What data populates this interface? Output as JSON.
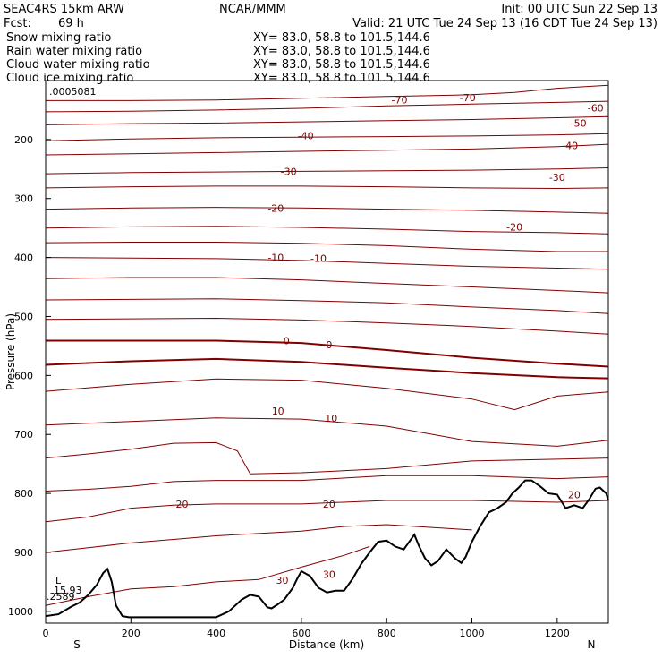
{
  "header": {
    "model": "SEAC4RS 15km ARW",
    "org": "NCAR/MMM",
    "init": "Init: 00 UTC Sun 22 Sep 13",
    "fcst_label": "Fcst:",
    "fcst_value": "69 h",
    "valid": "Valid: 21 UTC Tue 24 Sep 13 (16 CDT Tue 24 Sep 13)",
    "fields": [
      {
        "name": "Snow mixing ratio",
        "xy": "XY=  83.0, 58.8 to 101.5,144.6",
        "color": "#000000"
      },
      {
        "name": "Rain water mixing ratio",
        "xy": "XY=  83.0, 58.8 to 101.5,144.6",
        "color": "#ff0000"
      },
      {
        "name": "Cloud water mixing ratio",
        "xy": "XY=  83.0, 58.8 to 101.5,144.6",
        "color": "#0000cc"
      },
      {
        "name": "Cloud ice mixing ratio",
        "xy": "XY=  83.0, 58.8 to 101.5,144.6",
        "color": "#000000"
      }
    ],
    "max_value": ".0005081"
  },
  "annotations": {
    "low_marker": "L",
    "low_value": "15.93",
    "blue_value": ".2589",
    "blue_color": "#0000cc",
    "south": "S",
    "north": "N"
  },
  "colors": {
    "contour": "#800000",
    "terrain": "#000000"
  },
  "chart_data": {
    "type": "line",
    "title": "",
    "xlabel": "Distance (km)",
    "ylabel": "Pressure (hPa)",
    "xlim": [
      0,
      1320
    ],
    "ylim": [
      1020,
      100
    ],
    "x_ticks": [
      0,
      200,
      400,
      600,
      800,
      1000,
      1200
    ],
    "y_ticks": [
      200,
      300,
      400,
      500,
      600,
      700,
      800,
      900,
      1000
    ],
    "terrain": {
      "name": "Terrain",
      "x": [
        0,
        30,
        60,
        80,
        100,
        120,
        135,
        145,
        155,
        165,
        180,
        195,
        210,
        250,
        300,
        350,
        400,
        430,
        460,
        480,
        500,
        520,
        530,
        545,
        560,
        580,
        590,
        600,
        620,
        640,
        660,
        680,
        700,
        720,
        740,
        760,
        780,
        800,
        820,
        840,
        855,
        865,
        875,
        890,
        905,
        920,
        940,
        960,
        975,
        985,
        1000,
        1020,
        1040,
        1060,
        1080,
        1095,
        1110,
        1125,
        1140,
        1160,
        1180,
        1200,
        1220,
        1240,
        1260,
        1275,
        1290,
        1300,
        1315,
        1320
      ],
      "pressure": [
        1008,
        1005,
        992,
        985,
        972,
        955,
        935,
        928,
        950,
        990,
        1008,
        1010,
        1010,
        1010,
        1010,
        1010,
        1010,
        1000,
        980,
        972,
        975,
        993,
        995,
        988,
        980,
        960,
        945,
        932,
        940,
        960,
        968,
        965,
        965,
        945,
        920,
        900,
        882,
        880,
        890,
        895,
        880,
        870,
        888,
        910,
        922,
        915,
        895,
        910,
        918,
        908,
        882,
        855,
        832,
        825,
        815,
        800,
        790,
        778,
        778,
        788,
        800,
        802,
        825,
        820,
        825,
        810,
        792,
        790,
        800,
        812
      ]
    },
    "temperature_contours": [
      {
        "name": "-70",
        "x": [
          0,
          200,
          400,
          600,
          800,
          1000,
          1100,
          1200,
          1320
        ],
        "pressure": [
          134,
          134,
          133,
          130,
          127,
          124,
          120,
          113,
          108
        ]
      },
      {
        "name": "-60",
        "x": [
          0,
          200,
          400,
          600,
          800,
          1000,
          1200,
          1320
        ],
        "pressure": [
          153,
          152,
          150,
          147,
          143,
          140,
          137,
          135
        ]
      },
      {
        "name": "-50",
        "x": [
          0,
          200,
          400,
          600,
          800,
          1000,
          1200,
          1320
        ],
        "pressure": [
          175,
          173,
          172,
          170,
          168,
          166,
          163,
          161
        ]
      },
      {
        "name": "-40",
        "x": [
          0,
          200,
          400,
          600,
          800,
          1000,
          1200,
          1320
        ],
        "pressure": [
          202,
          199,
          197,
          196,
          195,
          194,
          192,
          190
        ]
      },
      {
        "name": "-40",
        "x": [
          0,
          200,
          400,
          600,
          800,
          1000,
          1200,
          1320
        ],
        "pressure": [
          226,
          224,
          222,
          220,
          218,
          216,
          212,
          208
        ]
      },
      {
        "name": "-30",
        "x": [
          0,
          200,
          400,
          600,
          800,
          1000,
          1200,
          1320
        ],
        "pressure": [
          258,
          256,
          255,
          254,
          253,
          252,
          250,
          248
        ]
      },
      {
        "name": "-30",
        "x": [
          0,
          200,
          400,
          600,
          800,
          1000,
          1200,
          1320
        ],
        "pressure": [
          282,
          280,
          279,
          279,
          280,
          282,
          283,
          282
        ]
      },
      {
        "name": "-20",
        "x": [
          0,
          200,
          400,
          600,
          800,
          1000,
          1200,
          1320
        ],
        "pressure": [
          318,
          316,
          315,
          316,
          318,
          320,
          323,
          325
        ]
      },
      {
        "name": "-20",
        "x": [
          0,
          200,
          400,
          600,
          800,
          1000,
          1200,
          1320
        ],
        "pressure": [
          350,
          348,
          347,
          349,
          352,
          356,
          358,
          360
        ]
      },
      {
        "name": "-20",
        "x": [
          0,
          200,
          400,
          600,
          800,
          1000,
          1200,
          1320
        ],
        "pressure": [
          375,
          374,
          374,
          376,
          380,
          386,
          390,
          390
        ]
      },
      {
        "name": "-10",
        "x": [
          0,
          200,
          400,
          600,
          800,
          1000,
          1200,
          1320
        ],
        "pressure": [
          400,
          401,
          402,
          405,
          410,
          415,
          418,
          420
        ]
      },
      {
        "name": "-10",
        "x": [
          0,
          200,
          400,
          600,
          800,
          1000,
          1200,
          1320
        ],
        "pressure": [
          436,
          434,
          434,
          438,
          444,
          450,
          456,
          460
        ]
      },
      {
        "name": "-10",
        "x": [
          0,
          200,
          400,
          600,
          800,
          1000,
          1200,
          1320
        ],
        "pressure": [
          472,
          471,
          470,
          473,
          477,
          484,
          490,
          495
        ]
      },
      {
        "name": "-10",
        "x": [
          0,
          200,
          400,
          600,
          800,
          1000,
          1200,
          1320
        ],
        "pressure": [
          505,
          504,
          503,
          506,
          511,
          517,
          525,
          530
        ]
      },
      {
        "name": "0",
        "x": [
          0,
          200,
          400,
          600,
          800,
          1000,
          1200,
          1320
        ],
        "pressure": [
          541,
          541,
          541,
          545,
          557,
          570,
          580,
          585
        ]
      },
      {
        "name": "0",
        "x": [
          0,
          200,
          400,
          600,
          800,
          1000,
          1200,
          1320
        ],
        "pressure": [
          582,
          576,
          572,
          577,
          587,
          596,
          603,
          605
        ]
      },
      {
        "name": "10",
        "x": [
          0,
          200,
          400,
          600,
          800,
          1000,
          1100,
          1200,
          1320
        ],
        "pressure": [
          627,
          615,
          606,
          608,
          622,
          640,
          658,
          635,
          628
        ]
      },
      {
        "name": "10",
        "x": [
          0,
          200,
          400,
          600,
          800,
          1000,
          1200,
          1320
        ],
        "pressure": [
          684,
          678,
          672,
          674,
          686,
          712,
          720,
          710
        ]
      },
      {
        "name": "10",
        "x": [
          0,
          100,
          200,
          300,
          400,
          450,
          480,
          600,
          800,
          1000,
          1200,
          1320
        ],
        "pressure": [
          740,
          733,
          725,
          715,
          714,
          728,
          767,
          765,
          758,
          745,
          742,
          740
        ]
      },
      {
        "name": "20",
        "x": [
          0,
          100,
          200,
          300,
          400,
          600,
          800,
          1000,
          1200,
          1320
        ],
        "pressure": [
          796,
          793,
          788,
          780,
          778,
          778,
          770,
          770,
          775,
          772
        ]
      },
      {
        "name": "20",
        "x": [
          0,
          100,
          200,
          300,
          400,
          600,
          800,
          1000,
          1200,
          1320
        ],
        "pressure": [
          848,
          840,
          825,
          820,
          818,
          818,
          812,
          812,
          815,
          812
        ]
      },
      {
        "name": "20",
        "x": [
          0,
          100,
          200,
          300,
          400,
          600,
          700,
          800,
          1000
        ],
        "pressure": [
          900,
          892,
          884,
          878,
          872,
          864,
          856,
          853,
          862
        ]
      },
      {
        "name": "30",
        "x": [
          0,
          100,
          200,
          300,
          400,
          500,
          600,
          700,
          760
        ],
        "pressure": [
          990,
          975,
          962,
          958,
          950,
          946,
          925,
          905,
          890
        ]
      }
    ],
    "contour_labels": [
      {
        "text": "-70",
        "x": 830,
        "p": 133
      },
      {
        "text": "-70",
        "x": 990,
        "p": 129
      },
      {
        "text": "-60",
        "x": 1290,
        "p": 146
      },
      {
        "text": "-50",
        "x": 1250,
        "p": 172
      },
      {
        "text": "-40",
        "x": 610,
        "p": 193
      },
      {
        "text": "-40",
        "x": 1230,
        "p": 210
      },
      {
        "text": "-30",
        "x": 570,
        "p": 254
      },
      {
        "text": "-30",
        "x": 1200,
        "p": 264
      },
      {
        "text": "-20",
        "x": 540,
        "p": 316
      },
      {
        "text": "-20",
        "x": 1100,
        "p": 348
      },
      {
        "text": "-10",
        "x": 540,
        "p": 400
      },
      {
        "text": "-10",
        "x": 640,
        "p": 401
      },
      {
        "text": "0",
        "x": 565,
        "p": 541
      },
      {
        "text": "0",
        "x": 665,
        "p": 548
      },
      {
        "text": "10",
        "x": 545,
        "p": 660
      },
      {
        "text": "10",
        "x": 670,
        "p": 672
      },
      {
        "text": "20",
        "x": 320,
        "p": 818
      },
      {
        "text": "20",
        "x": 665,
        "p": 818
      },
      {
        "text": "20",
        "x": 1240,
        "p": 802
      },
      {
        "text": "30",
        "x": 555,
        "p": 947
      },
      {
        "text": "30",
        "x": 665,
        "p": 937
      }
    ]
  }
}
